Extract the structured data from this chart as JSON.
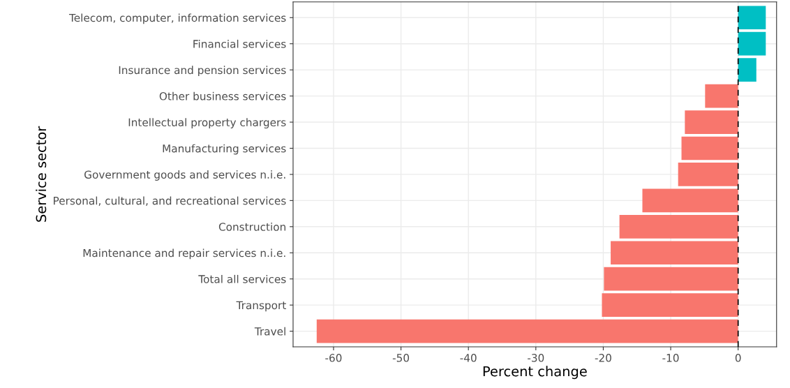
{
  "chart_data": {
    "type": "bar",
    "orientation": "horizontal",
    "xlabel": "Percent change",
    "ylabel": "Service sector",
    "categories": [
      "Telecom, computer, information services",
      "Financial services",
      "Insurance and pension services",
      "Other business services",
      "Intellectual property chargers",
      "Manufacturing services",
      "Government goods and services n.i.e.",
      "Personal, cultural, and recreational services",
      "Construction",
      "Maintenance and repair services n.i.e.",
      "Total all services",
      "Transport",
      "Travel"
    ],
    "values": [
      4.1,
      4.1,
      2.7,
      -4.9,
      -7.9,
      -8.4,
      -8.9,
      -14.2,
      -17.6,
      -18.9,
      -19.9,
      -20.2,
      -62.5
    ],
    "colors": [
      "#00bfc4",
      "#00bfc4",
      "#00bfc4",
      "#f8766d",
      "#f8766d",
      "#f8766d",
      "#f8766d",
      "#f8766d",
      "#f8766d",
      "#f8766d",
      "#f8766d",
      "#f8766d",
      "#f8766d"
    ],
    "xlim": [
      -66,
      5.7
    ],
    "xticks": [
      -60,
      -50,
      -40,
      -30,
      -20,
      -10,
      0
    ],
    "ref_lines": [
      {
        "axis": "x",
        "value": 0,
        "color": "#000000",
        "line_style": "dashed"
      }
    ],
    "grid": true,
    "legend": false
  }
}
